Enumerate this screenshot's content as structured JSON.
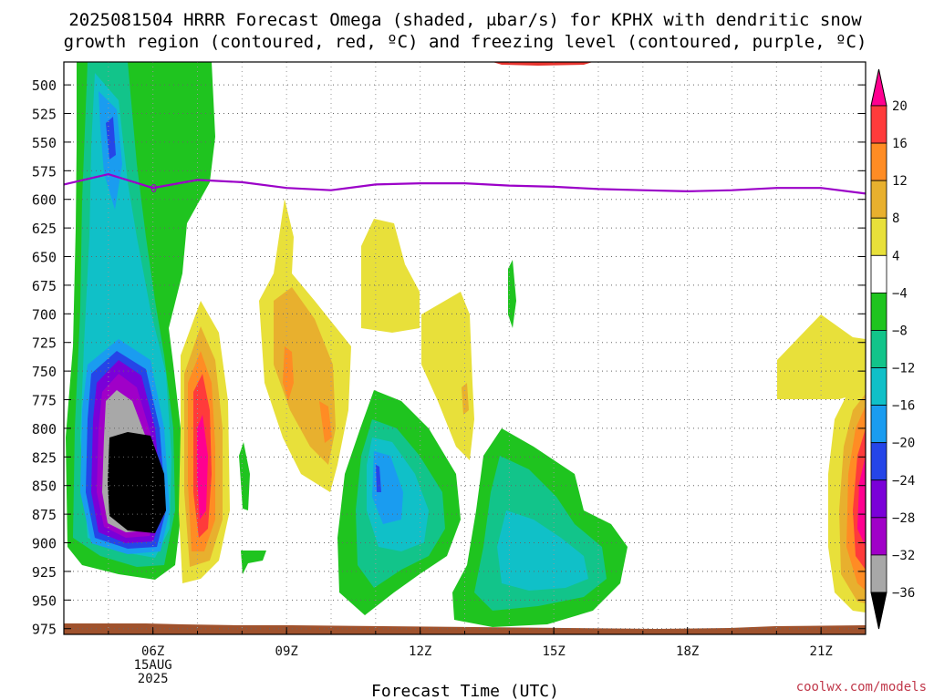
{
  "chart_data": {
    "type": "heatmap",
    "title_line1": "2025081504 HRRR Forecast Omega (shaded, μbar/s) for KPHX with dendritic snow",
    "title_line2": "growth region (contoured, red, ºC) and freezing level (contoured, purple, ºC)",
    "xlabel": "Forecast Time (UTC)",
    "credit": "coolwx.com/models",
    "y_ticks": [
      500,
      525,
      550,
      575,
      600,
      625,
      650,
      675,
      700,
      725,
      750,
      775,
      800,
      825,
      850,
      875,
      900,
      925,
      950,
      975
    ],
    "x_ticks": [
      "06Z",
      "09Z",
      "12Z",
      "15Z",
      "18Z",
      "21Z"
    ],
    "x_first_date": [
      "15AUG",
      "2025"
    ],
    "x_range_hours": [
      4,
      22
    ],
    "y_range_hpa": [
      480,
      980
    ],
    "grid": true,
    "freezing_level": {
      "label": "0",
      "color": "#9b00c8",
      "points": [
        [
          4,
          587
        ],
        [
          5,
          578
        ],
        [
          6,
          590
        ],
        [
          7,
          583
        ],
        [
          8,
          585
        ],
        [
          9,
          590
        ],
        [
          10,
          592
        ],
        [
          11,
          587
        ],
        [
          12,
          586
        ],
        [
          13,
          586
        ],
        [
          14,
          588
        ],
        [
          15,
          589
        ],
        [
          16,
          591
        ],
        [
          17,
          592
        ],
        [
          18,
          593
        ],
        [
          19,
          592
        ],
        [
          20,
          590
        ],
        [
          21,
          590
        ],
        [
          22,
          595
        ]
      ]
    },
    "colorbar": {
      "labels": [
        "20",
        "16",
        "12",
        "8",
        "4",
        "−4",
        "−8",
        "−12",
        "−16",
        "−20",
        "−24",
        "−28",
        "−32",
        "−36"
      ],
      "colors": [
        "#ff0090",
        "#ff3b3b",
        "#ff8c24",
        "#e8b02e",
        "#e8e03a",
        "#ffffff",
        "#1fc41f",
        "#12c48a",
        "#10c0c8",
        "#1a9cf0",
        "#2545e8",
        "#7a00d8",
        "#a000c8",
        "#a8a8a8",
        "#000000"
      ]
    }
  }
}
